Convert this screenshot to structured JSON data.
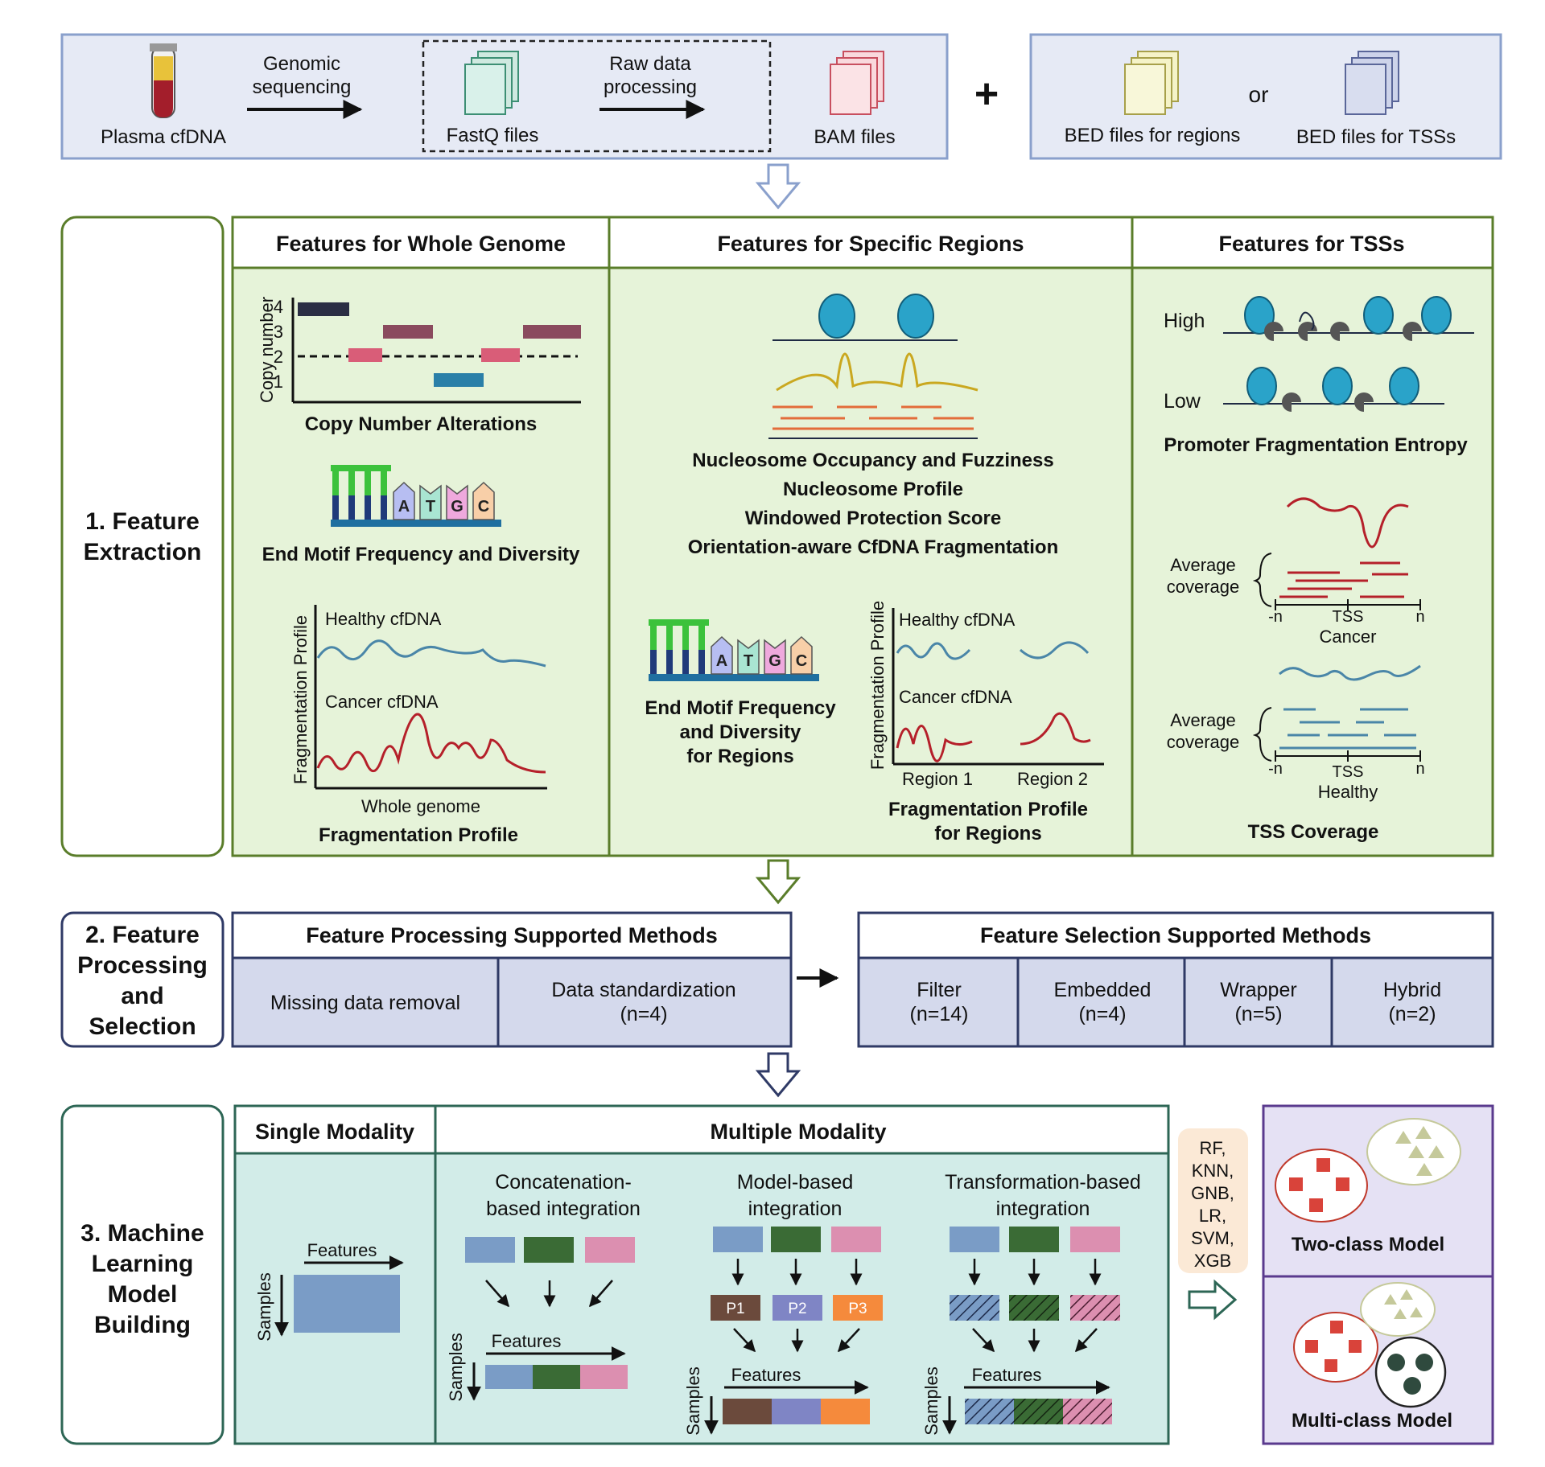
{
  "input": {
    "plasma": "Plasma cfDNA",
    "genomic": [
      "Genomic",
      "sequencing"
    ],
    "fastq": "FastQ files",
    "raw": [
      "Raw data",
      "processing"
    ],
    "bam": "BAM files",
    "plus": "+",
    "bed_regions": "BED files for regions",
    "or": "or",
    "bed_tss": "BED files for TSSs"
  },
  "step1": {
    "label": [
      "1. Feature",
      "Extraction"
    ],
    "col_whole": "Features for Whole Genome",
    "col_regions": "Features for Specific Regions",
    "col_tss": "Features for TSSs",
    "cn_ylabel": "Copy number",
    "cn_ticks": [
      "4",
      "3",
      "2",
      "1"
    ],
    "cna": "Copy Number Alterations",
    "motif_letters": [
      "A",
      "T",
      "G",
      "C"
    ],
    "end_motif": "End Motif Frequency and Diversity",
    "fp_ylabel": "Fragmentation Profile",
    "healthy": "Healthy cfDNA",
    "cancer": "Cancer cfDNA",
    "whole_genome": "Whole genome",
    "fp": "Fragmentation Profile",
    "regions_list": [
      "Nucleosome Occupancy and Fuzziness",
      "Nucleosome Profile",
      "Windowed Protection Score",
      "Orientation-aware CfDNA Fragmentation"
    ],
    "end_motif_regions": [
      "End Motif Frequency",
      "and Diversity",
      "for Regions"
    ],
    "region1": "Region 1",
    "region2": "Region 2",
    "fp_regions": [
      "Fragmentation Profile",
      "for Regions"
    ],
    "high": "High",
    "low": "Low",
    "pfe": "Promoter Fragmentation Entropy",
    "avg_cov": [
      "Average",
      "coverage"
    ],
    "neg_n": "-n",
    "tss": "TSS",
    "n": "n",
    "cancer_lbl": "Cancer",
    "healthy_lbl": "Healthy",
    "tss_cov": "TSS Coverage"
  },
  "step2": {
    "label": [
      "2. Feature",
      "Processing",
      "and",
      "Selection"
    ],
    "proc_title": "Feature Processing Supported Methods",
    "proc_methods": [
      {
        "name": "Missing data removal",
        "n": ""
      },
      {
        "name": "Data standardization",
        "n": "(n=4)"
      }
    ],
    "sel_title": "Feature Selection Supported Methods",
    "sel_methods": [
      {
        "name": "Filter",
        "n": "(n=14)"
      },
      {
        "name": "Embedded",
        "n": "(n=4)"
      },
      {
        "name": "Wrapper",
        "n": "(n=5)"
      },
      {
        "name": "Hybrid",
        "n": "(n=2)"
      }
    ]
  },
  "step3": {
    "label": [
      "3. Machine",
      "Learning",
      "Model",
      "Building"
    ],
    "single": "Single Modality",
    "multiple": "Multiple Modality",
    "features": "Features",
    "samples": "Samples",
    "concat": [
      "Concatenation-",
      "based integration"
    ],
    "model": [
      "Model-based",
      "integration"
    ],
    "transform": [
      "Transformation-based",
      "integration"
    ],
    "p_labels": [
      "P1",
      "P2",
      "P3"
    ],
    "classifiers": [
      "RF,",
      "KNN,",
      "GNB,",
      "LR,",
      "SVM,",
      "XGB"
    ],
    "two_class": "Two-class Model",
    "multi_class": "Multi-class Model"
  },
  "colors": {
    "input_fill": "#e6eaf5",
    "input_border": "#8aa0cc",
    "green_fill": "#e6f3d9",
    "green_border": "#5a7d2a",
    "blue_fill": "#d4d9ec",
    "navy": "#2f3a66",
    "teal_fill": "#d2ece8",
    "teal_border": "#2d6655",
    "purple_fill": "#e5e1f4",
    "purple_border": "#5a3a8e",
    "modality_blue": "#7a9cc6",
    "modality_green": "#3a6b35",
    "modality_pink": "#dc8fb0",
    "p1": "#6b4a3c",
    "p2": "#7f85c5",
    "p3": "#f58a3c",
    "healthy_line": "#4a86a8",
    "cancer_line": "#b5202a",
    "nucleosome": "#2aa3c9"
  }
}
